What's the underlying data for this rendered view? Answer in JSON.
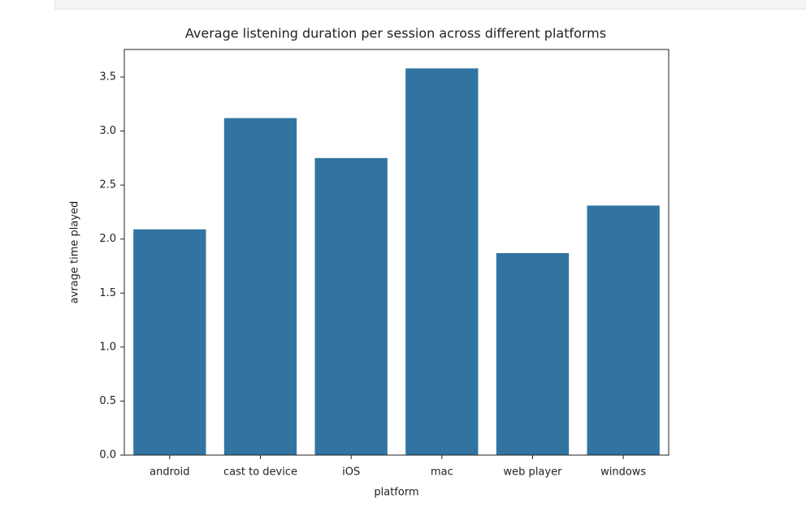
{
  "chart_data": {
    "type": "bar",
    "title": "Average listening duration per session across different platforms",
    "x_label": "platform",
    "y_label": "avrage time played",
    "categories": [
      "android",
      "cast to device",
      "iOS",
      "mac",
      "web player",
      "windows"
    ],
    "values": [
      2.09,
      3.12,
      2.75,
      3.58,
      1.87,
      2.31
    ],
    "color": "#3274a1",
    "ylim": [
      0,
      3.755
    ],
    "yticks": [
      {
        "value": 0,
        "label": "0.0"
      },
      0.5,
      {
        "value": 1,
        "label": "1.0"
      },
      1.5,
      {
        "value": 2,
        "label": "2.0"
      },
      2.5,
      {
        "value": 3,
        "label": "3.0"
      },
      3.5
    ]
  }
}
